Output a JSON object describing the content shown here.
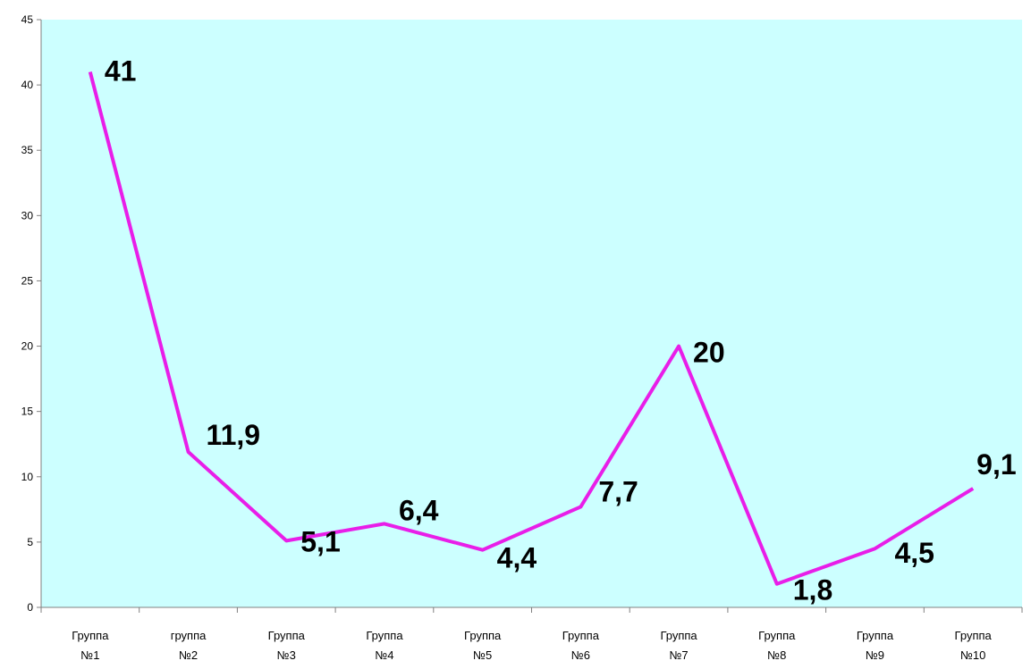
{
  "chart_data": {
    "type": "line",
    "categories": [
      [
        "Группа",
        "№1"
      ],
      [
        "группа",
        "№2"
      ],
      [
        "Группа",
        "№3"
      ],
      [
        "Группа",
        "№4"
      ],
      [
        "Группа",
        "№5"
      ],
      [
        "Группа",
        "№6"
      ],
      [
        "Группа",
        "№7"
      ],
      [
        "Группа",
        "№8"
      ],
      [
        "Группа",
        "№9"
      ],
      [
        "Группа",
        "№10"
      ]
    ],
    "series": [
      {
        "values": [
          41,
          11.9,
          5.1,
          6.4,
          4.4,
          7.7,
          20,
          1.8,
          4.5,
          9.1
        ]
      }
    ],
    "data_labels": [
      "41",
      "11,9",
      "5,1",
      "6,4",
      "4,4",
      "7,7",
      "20",
      "1,8",
      "4,5",
      "9,1"
    ],
    "ylim": [
      0,
      45
    ],
    "yticks": [
      0,
      5,
      10,
      15,
      20,
      25,
      30,
      35,
      40,
      45
    ],
    "grid": false,
    "legend": "none",
    "title": "",
    "xlabel": "",
    "ylabel": "",
    "colors": {
      "plot_background": "#ccffff",
      "line": "#e81ee8",
      "axis": "#808080"
    }
  }
}
